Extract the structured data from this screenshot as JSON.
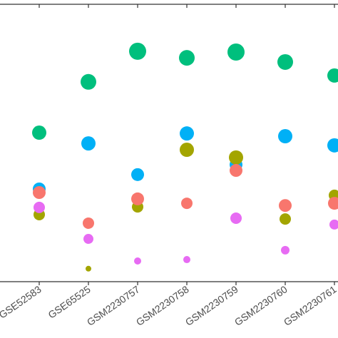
{
  "chart_data": {
    "type": "dot",
    "categories": [
      "GSE52583",
      "GSE65525",
      "GSM2230757",
      "GSM2230758",
      "GSM2230759",
      "GSM2230760",
      "GSM2230761"
    ],
    "ylim": [
      0,
      100
    ],
    "series": [
      {
        "color": "#00BF7D",
        "values": [
          54.0,
          72.4,
          83.5,
          81.1,
          83.2,
          79.6,
          74.7
        ],
        "sizes": [
          10,
          11,
          12,
          11,
          12,
          11,
          10
        ]
      },
      {
        "color": "#00B0F6",
        "values": [
          33.6,
          50.1,
          38.8,
          53.7,
          42.4,
          52.7,
          49.4
        ],
        "sizes": [
          9,
          10,
          9,
          10,
          9,
          10,
          10
        ]
      },
      {
        "color": "#A3A500",
        "values": [
          24.3,
          4.7,
          27.1,
          47.8,
          45.0,
          22.7,
          31.3
        ],
        "sizes": [
          8,
          4,
          8,
          10,
          10,
          8,
          8
        ]
      },
      {
        "color": "#F8766D",
        "values": [
          32.3,
          21.2,
          30.0,
          28.4,
          40.3,
          27.6,
          28.4
        ],
        "sizes": [
          9,
          8,
          9,
          8,
          9,
          9,
          9
        ]
      },
      {
        "color": "#E76BF3",
        "values": [
          26.9,
          15.5,
          7.5,
          8.0,
          23.0,
          11.4,
          20.7
        ],
        "sizes": [
          8,
          7,
          5,
          5,
          8,
          6,
          7
        ]
      }
    ]
  }
}
